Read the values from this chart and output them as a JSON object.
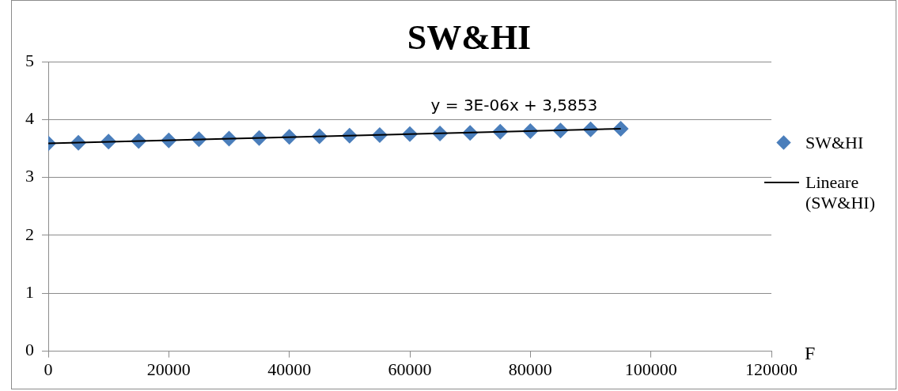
{
  "chart_data": {
    "type": "scatter",
    "title": "SW&HI",
    "xlabel": "F",
    "xlim": [
      0,
      120000
    ],
    "xticks": [
      0,
      20000,
      40000,
      60000,
      80000,
      100000,
      120000
    ],
    "ylim": [
      0,
      5
    ],
    "yticks": [
      0,
      1,
      2,
      3,
      4,
      5
    ],
    "grid": "y",
    "legend": "right",
    "marker": "diamond",
    "annotations": [
      "y = 3E-06x + 3,5853"
    ],
    "series": [
      {
        "name": "SW&HI",
        "type": "scatter",
        "color": "#4a7ebb",
        "x": [
          0,
          5000,
          10000,
          15000,
          20000,
          25000,
          30000,
          35000,
          40000,
          45000,
          50000,
          55000,
          60000,
          65000,
          70000,
          75000,
          80000,
          85000,
          90000,
          95000
        ],
        "values": [
          3.59,
          3.6,
          3.62,
          3.63,
          3.64,
          3.66,
          3.67,
          3.68,
          3.7,
          3.71,
          3.72,
          3.73,
          3.75,
          3.76,
          3.77,
          3.79,
          3.8,
          3.81,
          3.83,
          3.84
        ]
      },
      {
        "name": "Lineare (SW&HI)",
        "type": "line",
        "color": "#000000",
        "marker": "none",
        "x": [
          0,
          95000
        ],
        "values": [
          3.59,
          3.84
        ]
      }
    ]
  }
}
